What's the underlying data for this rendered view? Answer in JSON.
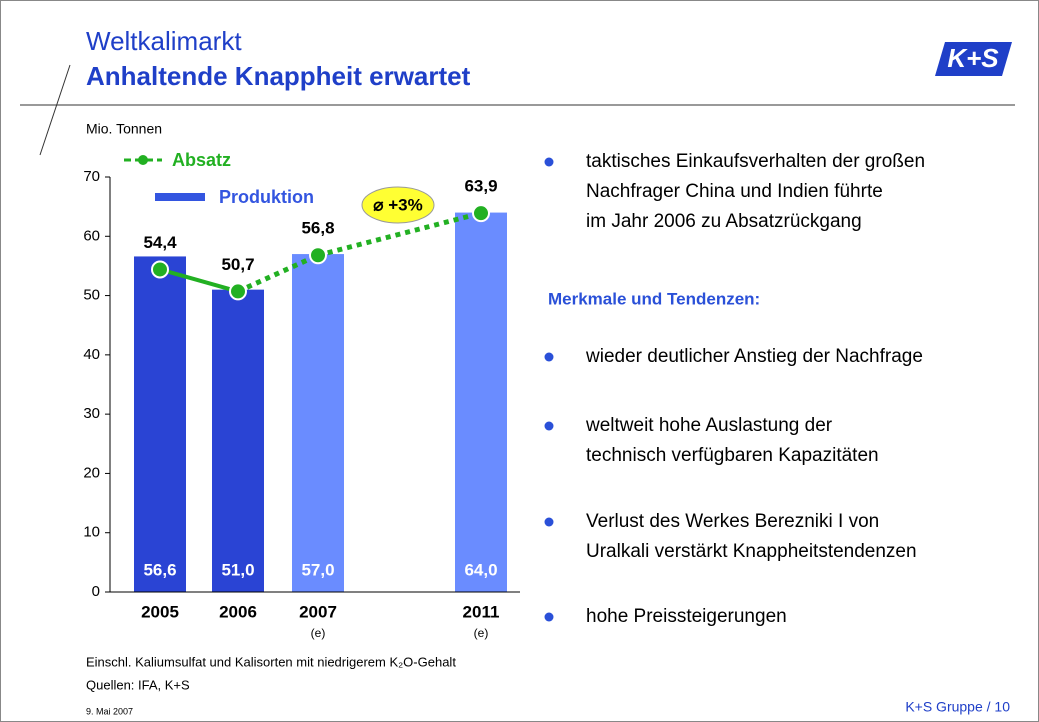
{
  "header": {
    "title": "Weltkalimarkt",
    "subtitle": "Anhaltende Knappheit erwartet",
    "logo": "K+S"
  },
  "chart_data": {
    "type": "bar",
    "ylabel": "Mio. Tonnen",
    "categories": [
      "2005",
      "2006",
      "2007",
      "2011"
    ],
    "category_notes": [
      null,
      null,
      "(e)",
      "(e)"
    ],
    "series": [
      {
        "name": "Produktion",
        "type": "bar",
        "color": "#3355e0",
        "colors": [
          "#2a44d4",
          "#2a44d4",
          "#6a8cff",
          "#6a8cff"
        ],
        "values": [
          56.6,
          51.0,
          57.0,
          64.0
        ],
        "value_labels": [
          "56,6",
          "51,0",
          "57,0",
          "64,0"
        ]
      },
      {
        "name": "Absatz",
        "type": "line",
        "color": "#22b022",
        "segment_styles": [
          "solid",
          "dotted",
          "dotted"
        ],
        "values": [
          54.4,
          50.7,
          56.8,
          63.9
        ],
        "value_labels": [
          "54,4",
          "50,7",
          "56,8",
          "63,9"
        ]
      }
    ],
    "ylim": [
      0,
      70
    ],
    "yticks": [
      0,
      10,
      20,
      30,
      40,
      50,
      60,
      70
    ],
    "annotation": "⌀ +3%"
  },
  "section": "Merkmale und Tendenzen:",
  "bullets_top": [
    {
      "lines": [
        "taktisches Einkaufsverhalten der großen",
        "Nachfrager China und Indien führte",
        "im Jahr 2006 zu Absatzrückgang"
      ]
    }
  ],
  "bullets": [
    {
      "lines": [
        "wieder deutlicher Anstieg der Nachfrage"
      ]
    },
    {
      "lines": [
        "weltweit hohe Auslastung der",
        "technisch verfügbaren Kapazitäten"
      ]
    },
    {
      "lines": [
        "Verlust des Werkes Berezniki I von",
        "Uralkali verstärkt Knappheitstendenzen"
      ]
    },
    {
      "lines": [
        "hohe Preissteigerungen"
      ]
    }
  ],
  "footnote": "Einschl. Kaliumsulfat und Kalisorten mit niedrigerem K₂O-Gehalt",
  "sources": "Quellen: IFA, K+S",
  "date": "9. Mai 2007",
  "page": "K+S Gruppe / 10"
}
